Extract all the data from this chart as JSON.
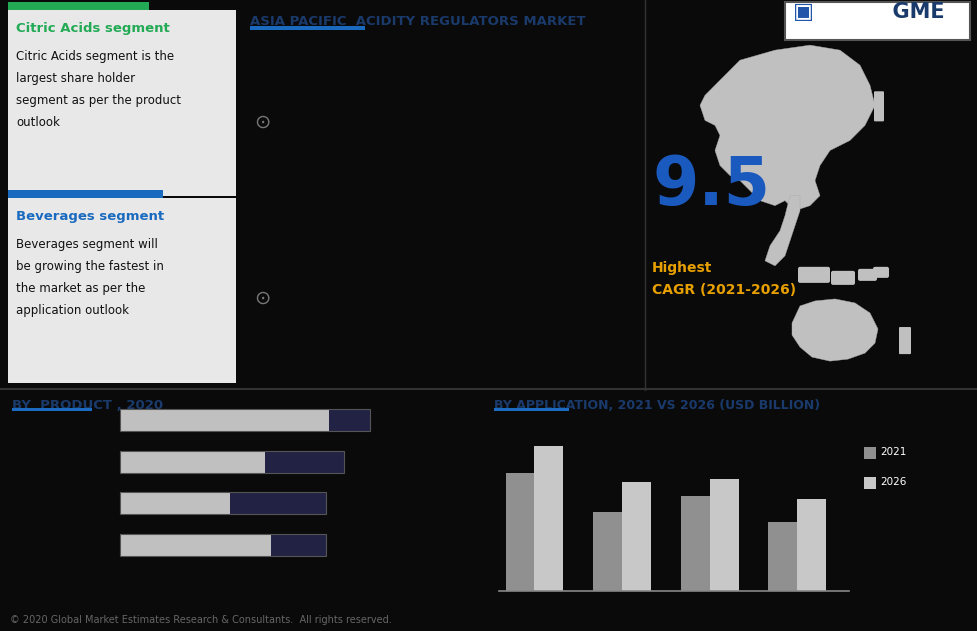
{
  "title_main": "ASIA PACIFIC  ACIDITY REGULATORS MARKET",
  "title_color": "#1a3a6b",
  "bg_color": "#0a0a0a",
  "box1_title": "Citric Acids segment",
  "box1_title_color": "#22aa55",
  "box1_bar_color": "#22aa55",
  "box1_bg": "#e8e8e8",
  "box1_text_lines": [
    "Citric Acids segment is the",
    "largest share holder",
    "segment as per the product",
    "outlook"
  ],
  "box2_title": "Beverages segment",
  "box2_title_color": "#1a6abf",
  "box2_bar_color": "#1a6abf",
  "box2_bg": "#e8e8e8",
  "box2_text_lines": [
    "Beverages segment will",
    "be growing the fastest in",
    "the market as per the",
    "application outlook"
  ],
  "cagr_value": "9.5",
  "cagr_label1": "Highest",
  "cagr_label2": "CAGR (2021-2026)",
  "cagr_number_color": "#1a5abf",
  "cagr_text_color": "#e8a000",
  "by_product_title": "BY  PRODUCT , 2020",
  "by_product_title_color": "#1a3a6b",
  "by_product_underline_color": "#1a6abf",
  "product_bars_light": [
    0.72,
    0.5,
    0.38,
    0.52
  ],
  "product_bars_dark": [
    0.14,
    0.27,
    0.33,
    0.19
  ],
  "product_bar_light_color": "#c0c0c0",
  "product_bar_dark_color": "#222244",
  "by_app_title": "BY APPLICATION, 2021 VS 2026 (USD BILLION)",
  "by_app_title_color": "#1a3a6b",
  "by_app_underline_color": "#1a6abf",
  "app_2021": [
    1.8,
    1.2,
    1.45,
    1.05
  ],
  "app_2026": [
    2.2,
    1.65,
    1.7,
    1.4
  ],
  "app_bar_2021_color": "#909090",
  "app_bar_2026_color": "#c8c8c8",
  "legend_2021": "2021",
  "legend_2026": "2026",
  "footer": "© 2020 Global Market Estimates Research & Consultants.  All rights reserved.",
  "footer_color": "#666666",
  "map_color": "#c0c0c0",
  "right_panel_bg": "#0a0a0a",
  "vertical_line_color": "#333333",
  "separator_color": "#333333"
}
